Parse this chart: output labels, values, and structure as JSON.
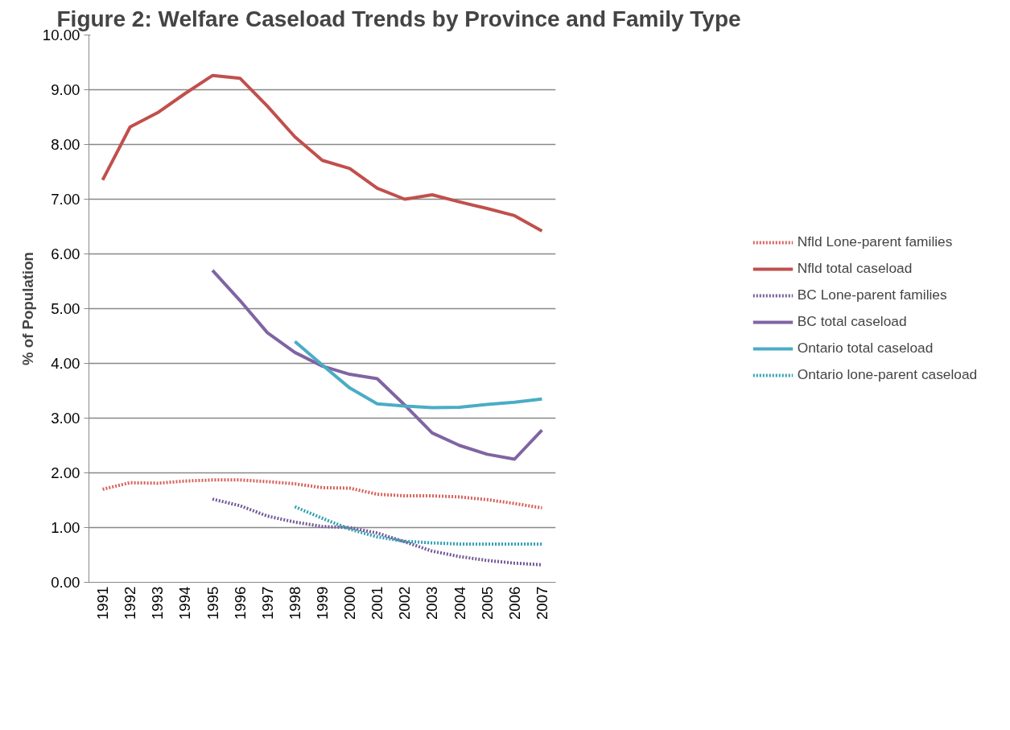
{
  "chart_data": {
    "type": "line",
    "title": "Figure 2: Welfare Caseload Trends by Province and Family Type",
    "ylabel": "% of Population",
    "categories": [
      "1991",
      "1992",
      "1993",
      "1994",
      "1995",
      "1996",
      "1997",
      "1998",
      "1999",
      "2000",
      "2001",
      "2002",
      "2003",
      "2004",
      "2005",
      "2006",
      "2007"
    ],
    "ylim": [
      0,
      10
    ],
    "yticks": [
      {
        "value": 0,
        "label": "0.00"
      },
      {
        "value": 1,
        "label": "1.00"
      },
      {
        "value": 2,
        "label": "2.00"
      },
      {
        "value": 3,
        "label": "3.00"
      },
      {
        "value": 4,
        "label": "4.00"
      },
      {
        "value": 5,
        "label": "5.00"
      },
      {
        "value": 6,
        "label": "6.00"
      },
      {
        "value": 7,
        "label": "7.00"
      },
      {
        "value": 8,
        "label": "8.00"
      },
      {
        "value": 9,
        "label": "9.00"
      },
      {
        "value": 10,
        "label": "10.00"
      }
    ],
    "grid": "y",
    "legend": "right",
    "marker": "none",
    "series": [
      {
        "name": "Nfld Lone-parent families",
        "color": "#d7625b",
        "line_style": "dotted",
        "values": [
          1.7,
          1.82,
          1.81,
          1.85,
          1.87,
          1.87,
          1.84,
          1.8,
          1.73,
          1.72,
          1.61,
          1.58,
          1.58,
          1.56,
          1.51,
          1.44,
          1.36
        ]
      },
      {
        "name": "Nfld total caseload",
        "color": "#c0504d",
        "line_style": "solid",
        "values": [
          7.35,
          8.32,
          8.58,
          8.93,
          9.26,
          9.21,
          8.7,
          8.14,
          7.71,
          7.56,
          7.2,
          7.0,
          7.08,
          6.95,
          6.83,
          6.7,
          6.42
        ]
      },
      {
        "name": "BC Lone-parent families",
        "color": "#735a97",
        "line_style": "dotted",
        "values": [
          null,
          null,
          null,
          null,
          1.52,
          1.4,
          1.21,
          1.1,
          1.02,
          1.0,
          0.9,
          0.74,
          0.57,
          0.47,
          0.4,
          0.35,
          0.32
        ]
      },
      {
        "name": "BC total caseload",
        "color": "#8064a2",
        "line_style": "solid",
        "values": [
          null,
          null,
          null,
          null,
          5.7,
          5.15,
          4.56,
          4.2,
          3.95,
          3.8,
          3.72,
          3.24,
          2.73,
          2.5,
          2.34,
          2.25,
          2.78
        ]
      },
      {
        "name": "Ontario total caseload",
        "color": "#4bacc6",
        "line_style": "solid",
        "values": [
          null,
          null,
          null,
          null,
          null,
          null,
          null,
          4.4,
          3.97,
          3.55,
          3.26,
          3.22,
          3.19,
          3.2,
          3.25,
          3.29,
          3.35
        ]
      },
      {
        "name": "Ontario lone-parent caseload",
        "color": "#31a0b2",
        "line_style": "dotted",
        "values": [
          null,
          null,
          null,
          null,
          null,
          null,
          null,
          1.38,
          1.17,
          0.97,
          0.83,
          0.75,
          0.72,
          0.7,
          0.7,
          0.7,
          0.7
        ]
      }
    ]
  }
}
